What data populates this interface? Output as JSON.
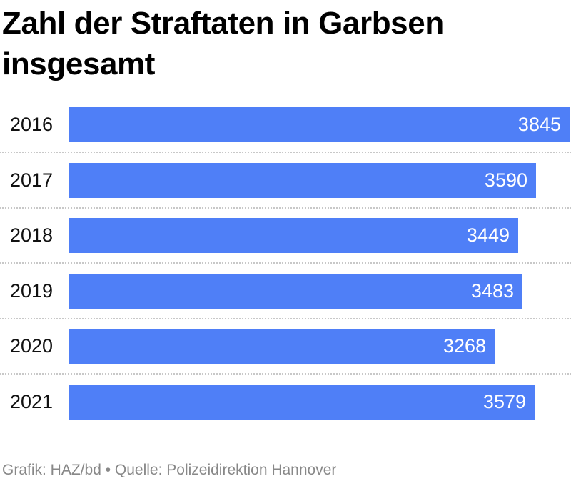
{
  "chart_data": {
    "type": "bar",
    "orientation": "horizontal",
    "title": "Zahl der Straftaten in Garbsen insgesamt",
    "categories": [
      "2016",
      "2017",
      "2018",
      "2019",
      "2020",
      "2021"
    ],
    "values": [
      3845,
      3590,
      3449,
      3483,
      3268,
      3579
    ],
    "data_labels": [
      "3845",
      "3590",
      "3449",
      "3483",
      "3268",
      "3579"
    ],
    "xlim": [
      0,
      3845
    ],
    "grid": false,
    "legend": "none",
    "bar_color": "#4f7ff7",
    "label_color": "#ffffff"
  },
  "footer": {
    "text": "Grafik: HAZ/bd • Quelle: Polizeidirektion Hannover"
  }
}
